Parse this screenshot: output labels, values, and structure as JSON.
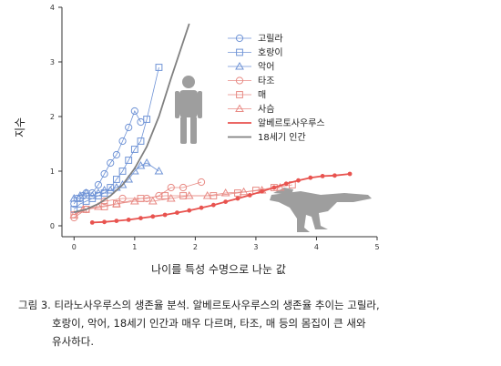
{
  "chart_data": {
    "type": "scatter",
    "xlabel": "나이를 특성 수명으로 나눈 값",
    "ylabel": "지수",
    "xlim": [
      -0.2,
      5
    ],
    "ylim": [
      -0.2,
      4
    ],
    "xticks": [
      "0",
      "1",
      "2",
      "3",
      "4",
      "5"
    ],
    "yticks": [
      "0",
      "1",
      "2",
      "3",
      "4"
    ],
    "legend_position": "top-right",
    "series": [
      {
        "name": "고릴라",
        "marker": "circle",
        "color": "#6f93d6",
        "line": true,
        "x": [
          0,
          0.05,
          0.1,
          0.15,
          0.2,
          0.3,
          0.4,
          0.5,
          0.6,
          0.7,
          0.8,
          0.9,
          1.0,
          1.1
        ],
        "y": [
          0.4,
          0.5,
          0.5,
          0.55,
          0.6,
          0.6,
          0.75,
          0.95,
          1.15,
          1.3,
          1.55,
          1.8,
          2.1,
          1.9
        ]
      },
      {
        "name": "호랑이",
        "marker": "square",
        "color": "#6f93d6",
        "line": true,
        "x": [
          0,
          0.1,
          0.2,
          0.3,
          0.4,
          0.5,
          0.6,
          0.7,
          0.8,
          0.9,
          1.0,
          1.1,
          1.2,
          1.4
        ],
        "y": [
          0.3,
          0.4,
          0.45,
          0.5,
          0.55,
          0.6,
          0.7,
          0.85,
          1.0,
          1.2,
          1.4,
          1.55,
          1.95,
          2.9
        ]
      },
      {
        "name": "악어",
        "marker": "triangle",
        "color": "#6f93d6",
        "line": true,
        "x": [
          0,
          0.1,
          0.2,
          0.3,
          0.4,
          0.5,
          0.6,
          0.7,
          0.8,
          0.9,
          1.0,
          1.1,
          1.2,
          1.4
        ],
        "y": [
          0.5,
          0.55,
          0.6,
          0.55,
          0.6,
          0.65,
          0.65,
          0.7,
          0.75,
          0.85,
          1.0,
          1.1,
          1.15,
          1.0
        ]
      },
      {
        "name": "타조",
        "marker": "circle",
        "color": "#e88a84",
        "line": true,
        "x": [
          0,
          0.2,
          0.5,
          0.8,
          1.2,
          1.4,
          1.6,
          1.8,
          2.1
        ],
        "y": [
          0.15,
          0.3,
          0.45,
          0.5,
          0.5,
          0.55,
          0.7,
          0.7,
          0.8
        ]
      },
      {
        "name": "매",
        "marker": "square",
        "color": "#e88a84",
        "line": true,
        "x": [
          0,
          0.2,
          0.5,
          0.7,
          1.1,
          1.5,
          1.8,
          2.3,
          2.7,
          3.0,
          3.3,
          3.6
        ],
        "y": [
          0.2,
          0.3,
          0.35,
          0.4,
          0.5,
          0.55,
          0.55,
          0.55,
          0.6,
          0.65,
          0.7,
          0.75
        ]
      },
      {
        "name": "사슴",
        "marker": "triangle",
        "color": "#e88a84",
        "line": true,
        "x": [
          0,
          0.15,
          0.4,
          0.7,
          1.0,
          1.3,
          1.6,
          1.9,
          2.2,
          2.5,
          2.8,
          3.1,
          3.4
        ],
        "y": [
          0.2,
          0.3,
          0.35,
          0.4,
          0.45,
          0.45,
          0.5,
          0.55,
          0.55,
          0.6,
          0.62,
          0.65,
          0.7
        ]
      },
      {
        "name": "알베르토사우루스",
        "marker": "dot",
        "color": "#e8534f",
        "line": true,
        "x": [
          0.3,
          0.5,
          0.7,
          0.9,
          1.1,
          1.3,
          1.5,
          1.7,
          1.9,
          2.1,
          2.3,
          2.5,
          2.7,
          2.9,
          3.1,
          3.3,
          3.5,
          3.7,
          3.9,
          4.1,
          4.3,
          4.55
        ],
        "y": [
          0.06,
          0.07,
          0.09,
          0.11,
          0.14,
          0.17,
          0.2,
          0.24,
          0.28,
          0.33,
          0.38,
          0.44,
          0.5,
          0.56,
          0.63,
          0.7,
          0.77,
          0.83,
          0.88,
          0.91,
          0.92,
          0.95
        ]
      },
      {
        "name": "18세기 인간",
        "marker": "none",
        "color": "#808080",
        "line": true,
        "x": [
          0,
          0.2,
          0.4,
          0.6,
          0.8,
          1.0,
          1.2,
          1.4,
          1.6,
          1.75,
          1.9
        ],
        "y": [
          0.25,
          0.3,
          0.4,
          0.55,
          0.75,
          1.05,
          1.45,
          2.0,
          2.7,
          3.2,
          3.7
        ]
      }
    ]
  },
  "caption": {
    "line1": "그림 3. 티라노사우루스의 생존율 분석. 알베르토사우루스의 생존율 추이는 고릴라,",
    "line2": "호랑이, 악어, 18세기 인간과 매우 다르며, 타조, 매 등의 몸집이 큰 새와",
    "line3": "유사하다."
  },
  "icons": {
    "human": "human-silhouette-icon",
    "dinosaur": "tyrannosaurus-silhouette-icon"
  }
}
